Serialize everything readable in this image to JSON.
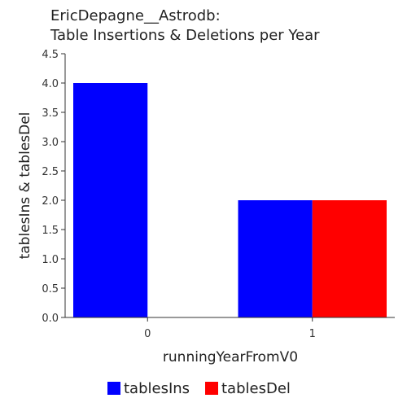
{
  "chart_data": {
    "type": "bar",
    "title_lines": [
      "EricDepagne__Astrodb:",
      "Table Insertions & Deletions per Year"
    ],
    "xlabel": "runningYearFromV0",
    "ylabel": "tablesIns & tablesDel",
    "categories": [
      "0",
      "1"
    ],
    "ylim": [
      0,
      4.5
    ],
    "yticks": [
      "0.0",
      "0.5",
      "1.0",
      "1.5",
      "2.0",
      "2.5",
      "3.0",
      "3.5",
      "4.0",
      "4.5"
    ],
    "grid": false,
    "legend_position": "bottom",
    "series": [
      {
        "name": "tablesIns",
        "color": "#0000ff",
        "values": [
          4,
          2
        ]
      },
      {
        "name": "tablesDel",
        "color": "#ff0000",
        "values": [
          0,
          2
        ]
      }
    ]
  }
}
